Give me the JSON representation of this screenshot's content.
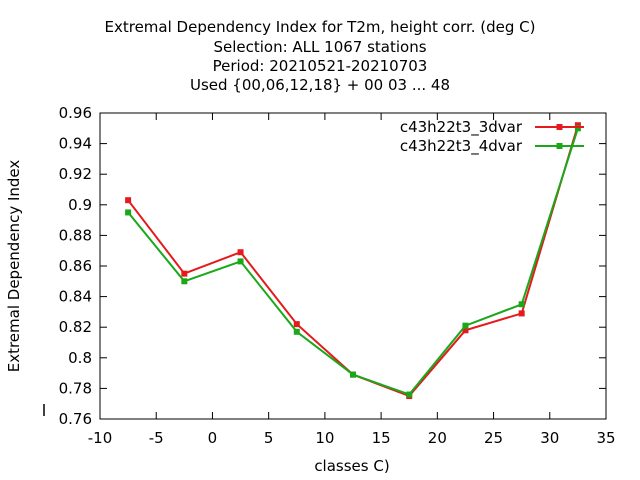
{
  "titles": [
    "Extremal Dependency Index  for T2m, height corr. (deg C)",
    "Selection: ALL   1067 stations",
    "Period: 20210521-20210703",
    "Used {00,06,12,18} + 00 03 ... 48"
  ],
  "chart_data": {
    "type": "line",
    "title": "Extremal Dependency Index  for T2m, height corr. (deg C)",
    "xlabel": "classes C)",
    "ylabel": "Extremal Dependency Index",
    "xlim": [
      -10,
      35
    ],
    "ylim": [
      0.76,
      0.96
    ],
    "xticks": [
      -10,
      -5,
      0,
      5,
      10,
      15,
      20,
      25,
      30,
      35
    ],
    "yticks": [
      0.76,
      0.78,
      0.8,
      0.82,
      0.84,
      0.86,
      0.88,
      0.9,
      0.92,
      0.94,
      0.96
    ],
    "xtick_labels": [
      "-10",
      "-5",
      "0",
      "5",
      "10",
      "15",
      "20",
      "25",
      "30",
      "35"
    ],
    "ytick_labels": [
      "0.76",
      "0.78",
      "0.8",
      "0.82",
      "0.84",
      "0.86",
      "0.88",
      "0.9",
      "0.92",
      "0.94",
      "0.96"
    ],
    "grid": false,
    "legend_position": "top-right",
    "x": [
      -7.5,
      -2.5,
      2.5,
      7.5,
      12.5,
      17.5,
      22.5,
      27.5,
      32.5
    ],
    "series": [
      {
        "name": "c43h22t3_3dvar",
        "color": "#e41a1c",
        "values": [
          0.903,
          0.855,
          0.869,
          0.822,
          0.789,
          0.775,
          0.818,
          0.829,
          0.952
        ]
      },
      {
        "name": "c43h22t3_4dvar",
        "color": "#1aa81a",
        "values": [
          0.895,
          0.85,
          0.863,
          0.817,
          0.789,
          0.776,
          0.821,
          0.835,
          0.95
        ]
      }
    ]
  }
}
